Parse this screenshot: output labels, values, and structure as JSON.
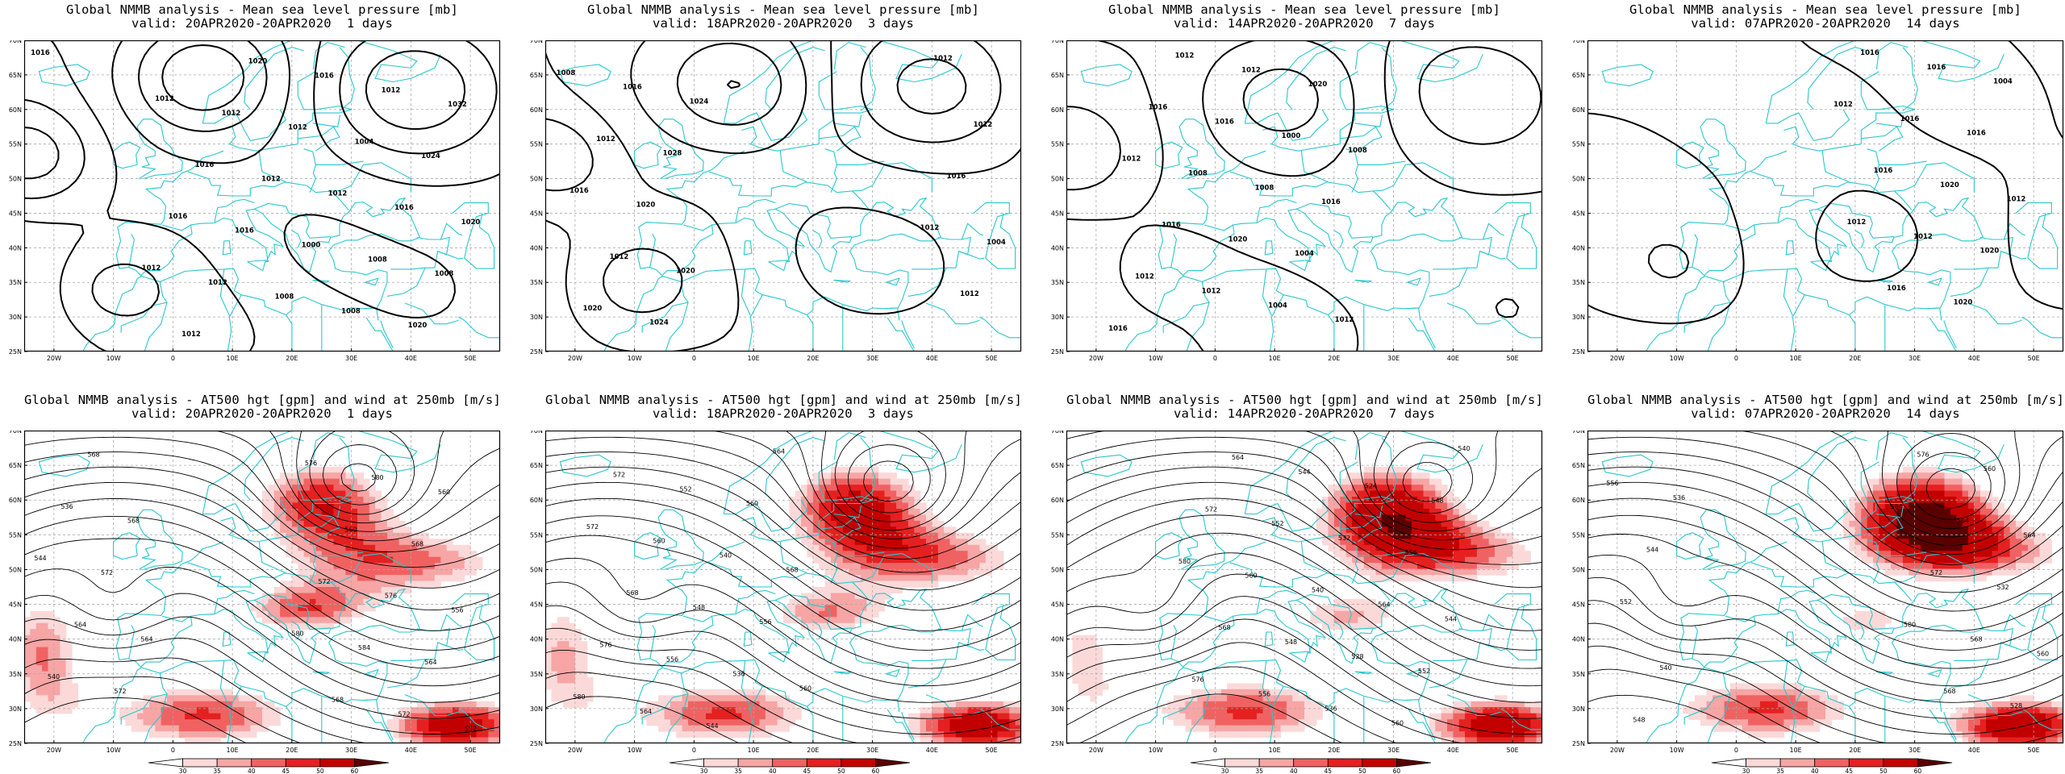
{
  "panels": [
    {
      "row": 0,
      "col": 0,
      "title_line1": "Global NMMB analysis - Mean sea level pressure [mb]",
      "title_line2": "valid: 20APR2020-20APR2020  1 days",
      "field": "mslp",
      "isobar_labels": [
        "1016",
        "1020",
        "1032",
        "1008",
        "1024",
        "1020",
        "1016",
        "1012",
        "1008",
        "1004",
        "1008",
        "1012",
        "1016",
        "1000",
        "1012",
        "1008",
        "1012",
        "1020",
        "1016",
        "1012",
        "1012",
        "1016",
        "1012",
        "1016",
        "1012",
        "1012"
      ]
    },
    {
      "row": 0,
      "col": 1,
      "title_line1": "Global NMMB analysis - Mean sea level pressure [mb]",
      "title_line2": "valid: 18APR2020-20APR2020  3 days",
      "field": "mslp",
      "isobar_labels": [
        "1024",
        "1020",
        "1028",
        "1024",
        "1020",
        "1016",
        "1012",
        "1012",
        "1020",
        "1016",
        "1008",
        "1004",
        "1012",
        "1012",
        "1016",
        "1012",
        "1012"
      ]
    },
    {
      "row": 0,
      "col": 2,
      "title_line1": "Global NMMB analysis - Mean sea level pressure [mb]",
      "title_line2": "valid: 14APR2020-20APR2020  7 days",
      "field": "mslp",
      "isobar_labels": [
        "1008",
        "1012",
        "1016",
        "1020",
        "1004",
        "1000",
        "1004",
        "1008",
        "1012",
        "1020",
        "1016",
        "1012",
        "1008",
        "1012",
        "1016",
        "1016",
        "1012",
        "1012",
        "1016"
      ]
    },
    {
      "row": 0,
      "col": 3,
      "title_line1": "Global NMMB analysis - Mean sea level pressure [mb]",
      "title_line2": "valid: 07APR2020-20APR2020  14 days",
      "field": "mslp",
      "isobar_labels": [
        "1012",
        "1004",
        "1020",
        "1016",
        "1020",
        "1020",
        "1016",
        "1012",
        "1016",
        "1016",
        "1016",
        "1016",
        "1012",
        "1012"
      ]
    },
    {
      "row": 1,
      "col": 0,
      "title_line1": "Global NMMB analysis - AT500 hgt [gpm] and wind at 250mb [m/s]",
      "title_line2": "valid: 20APR2020-20APR2020  1 days",
      "field": "z500",
      "hgt_labels": [
        "564",
        "568",
        "572",
        "572",
        "568",
        "564",
        "536",
        "540",
        "544",
        "552",
        "556",
        "560",
        "564",
        "568",
        "572",
        "576",
        "580",
        "584",
        "560",
        "568",
        "572",
        "576",
        "580"
      ]
    },
    {
      "row": 1,
      "col": 1,
      "title_line1": "Global NMMB analysis - AT500 hgt [gpm] and wind at 250mb [m/s]",
      "title_line2": "valid: 18APR2020-20APR2020  3 days",
      "field": "z500",
      "hgt_labels": [
        "560",
        "568",
        "564",
        "556",
        "560",
        "536",
        "540",
        "544",
        "548",
        "552",
        "556",
        "560",
        "564",
        "568",
        "572",
        "576",
        "572",
        "580"
      ]
    },
    {
      "row": 1,
      "col": 2,
      "title_line1": "Global NMMB analysis - AT500 hgt [gpm] and wind at 250mb [m/s]",
      "title_line2": "valid: 14APR2020-20APR2020  7 days",
      "field": "z500",
      "hgt_labels": [
        "540",
        "544",
        "548",
        "552",
        "556",
        "560",
        "564",
        "524",
        "528",
        "532",
        "536",
        "540",
        "544",
        "548",
        "552",
        "556",
        "560",
        "564",
        "568",
        "572",
        "576",
        "580"
      ]
    },
    {
      "row": 1,
      "col": 3,
      "title_line1": "Global NMMB analysis - AT500 hgt [gpm] and wind at 250mb [m/s]",
      "title_line2": "valid: 07APR2020-20APR2020  14 days",
      "field": "z500",
      "hgt_labels": [
        "536",
        "540",
        "544",
        "548",
        "552",
        "556",
        "560",
        "564",
        "528",
        "532",
        "560",
        "568",
        "564",
        "568",
        "572",
        "576",
        "580",
        "584"
      ]
    }
  ],
  "lat_ticks": [
    "70N",
    "65N",
    "60N",
    "55N",
    "50N",
    "45N",
    "40N",
    "35N",
    "30N",
    "25N"
  ],
  "lon_ticks": [
    "20W",
    "10W",
    "0",
    "10E",
    "20E",
    "30E",
    "40E",
    "50E"
  ],
  "colorbar_ticks": [
    "30",
    "35",
    "40",
    "45",
    "50",
    "60"
  ],
  "colors": {
    "coast": "#2ac7cc",
    "grid": "#a9a9a9",
    "contour": "#000000",
    "wind": [
      "#fcd9d9",
      "#f7a5a5",
      "#f06262",
      "#e52020",
      "#c30000",
      "#5a0000"
    ]
  }
}
